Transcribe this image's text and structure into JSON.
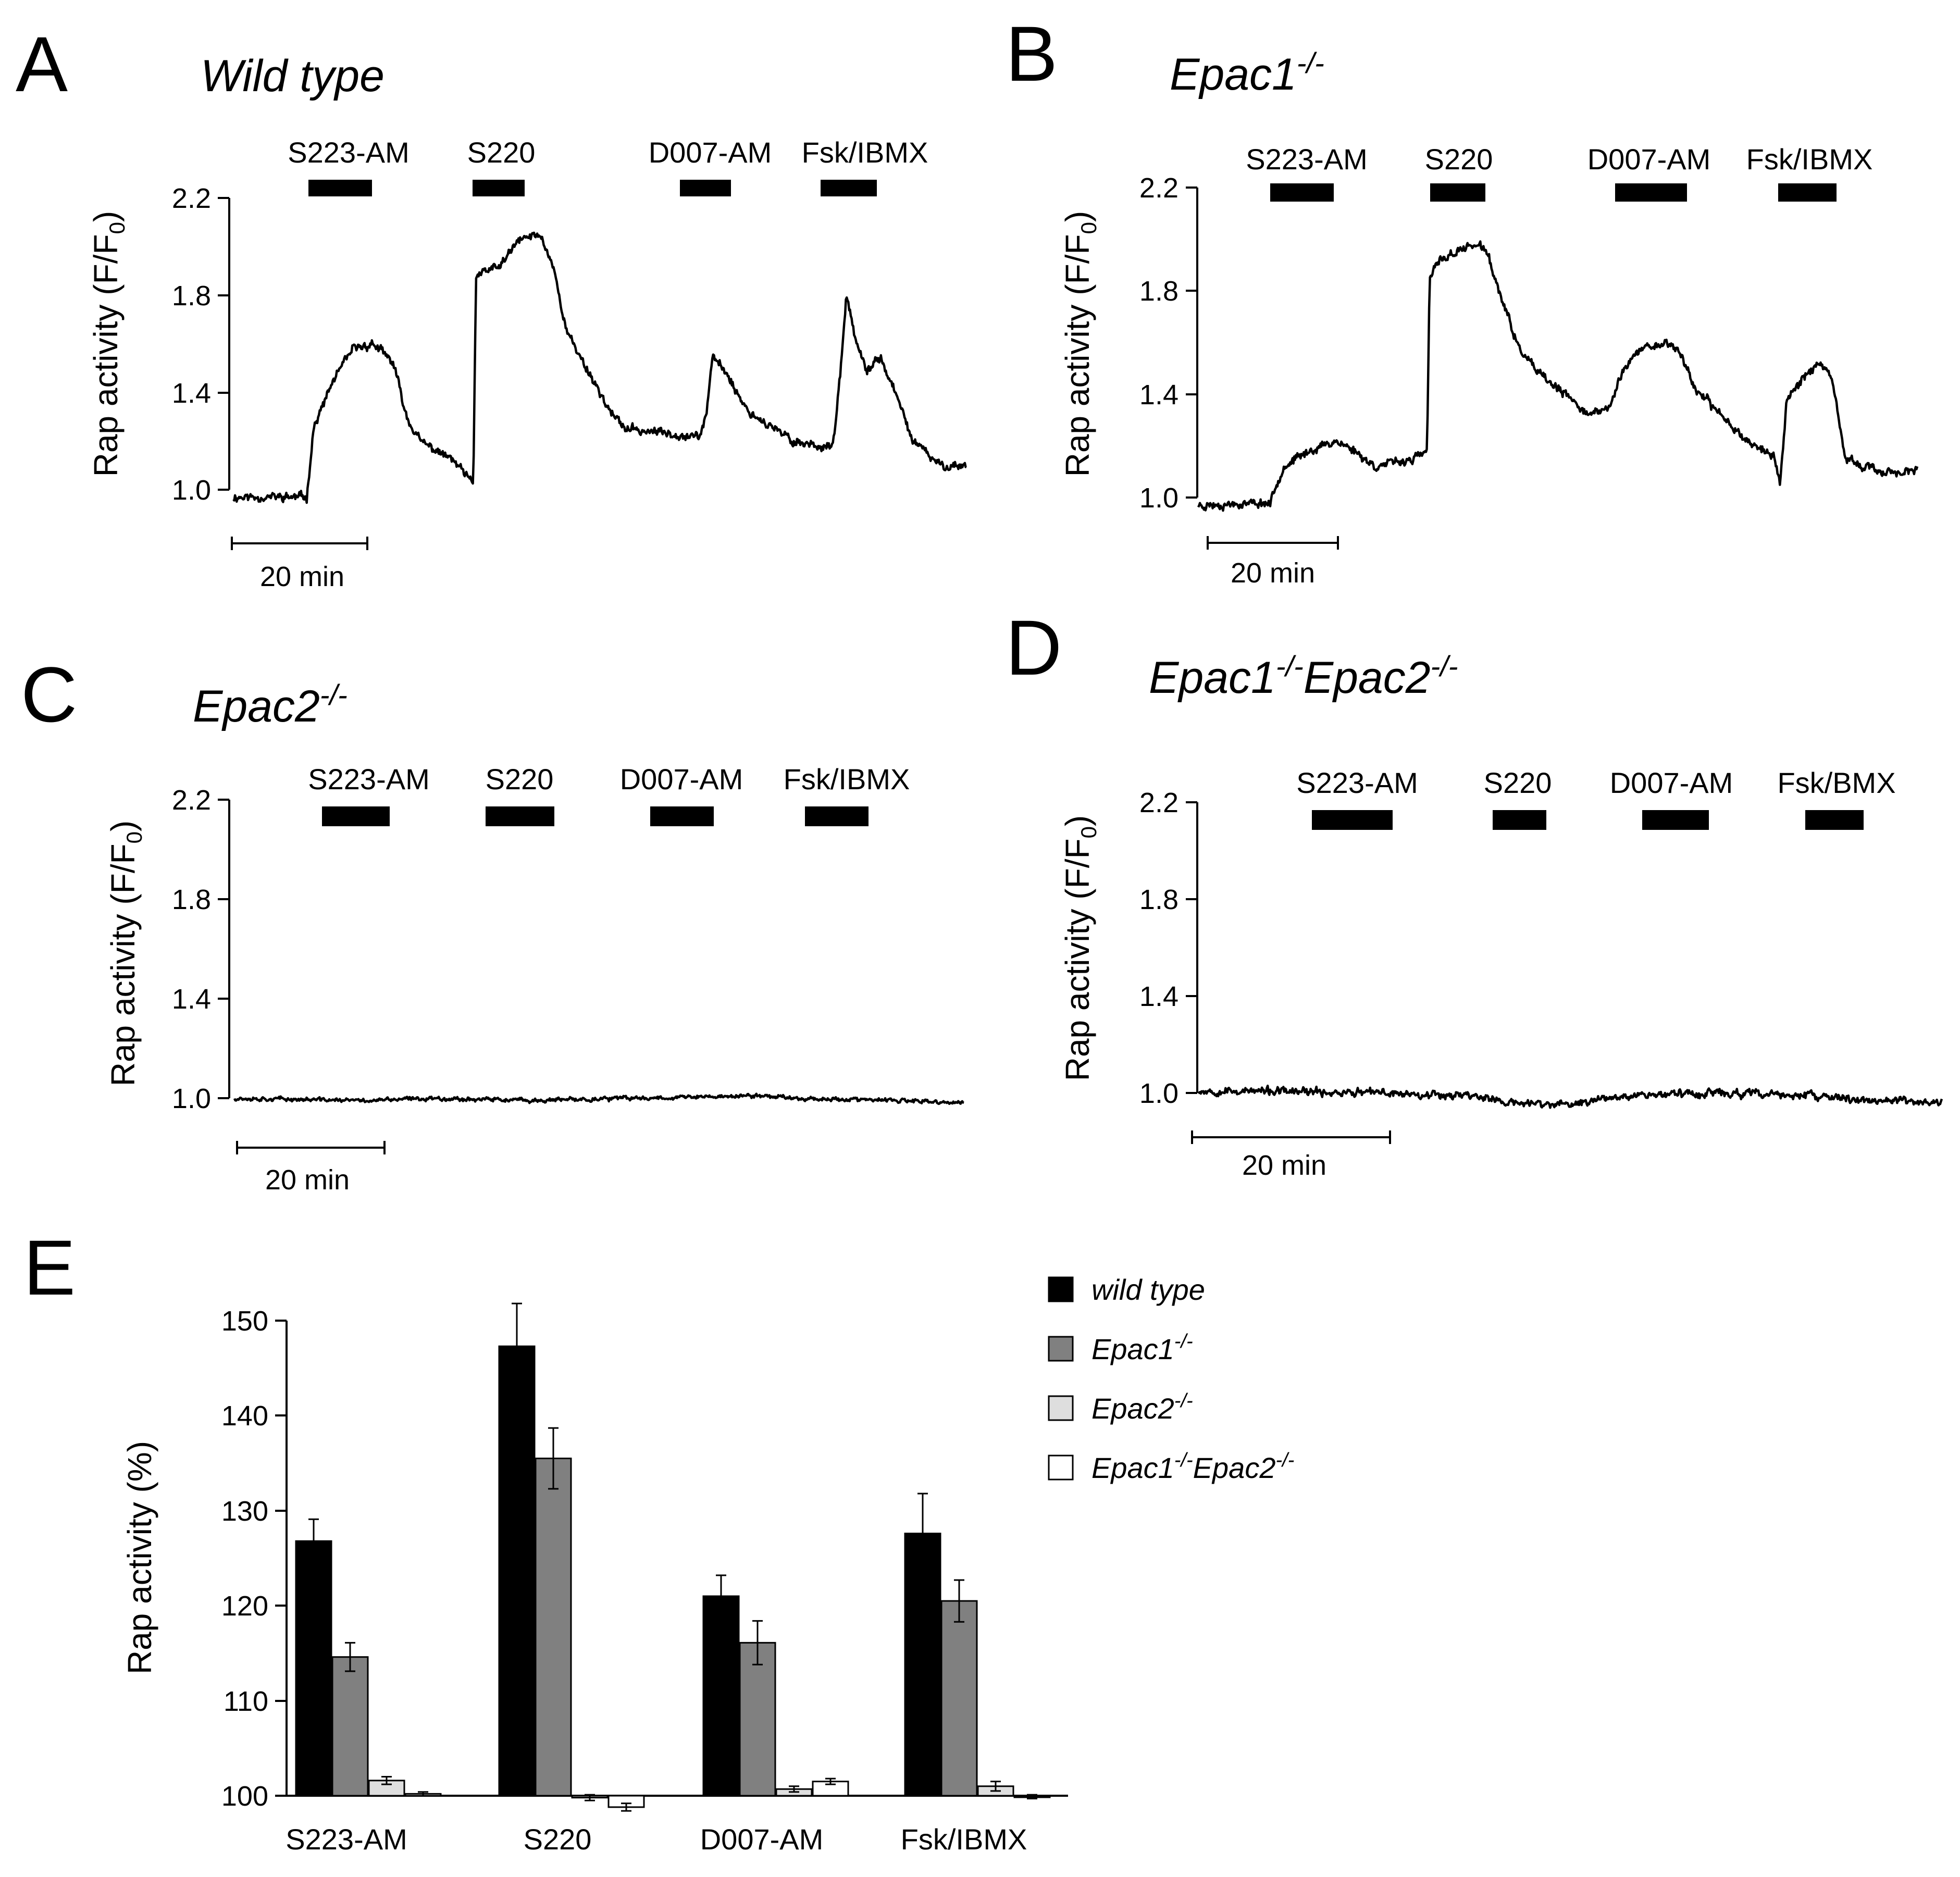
{
  "figure": {
    "trace_panels": [
      {
        "id": "A",
        "title": "Wild type",
        "title_sup": "",
        "ylabel": "Rap activity (F/F",
        "ylabel_sub": "0",
        "ylabel_close": ")",
        "yticks": [
          "2.2",
          "1.8",
          "1.4",
          "1.0"
        ],
        "scale_bar": "20 min",
        "treatments": [
          "S223-AM",
          "S220",
          "D007-AM",
          "Fsk/IBMX"
        ]
      },
      {
        "id": "B",
        "title": "Epac1",
        "title_sup": "-/-",
        "ylabel": "Rap activity (F/F",
        "ylabel_sub": "0",
        "ylabel_close": ")",
        "yticks": [
          "2.2",
          "1.8",
          "1.4",
          "1.0"
        ],
        "scale_bar": "20 min",
        "treatments": [
          "S223-AM",
          "S220",
          "D007-AM",
          "Fsk/IBMX"
        ]
      },
      {
        "id": "C",
        "title": "Epac2",
        "title_sup": "-/-",
        "ylabel": "Rap activity (F/F",
        "ylabel_sub": "0",
        "ylabel_close": ")",
        "yticks": [
          "2.2",
          "1.8",
          "1.4",
          "1.0"
        ],
        "scale_bar": "20 min",
        "treatments": [
          "S223-AM",
          "S220",
          "D007-AM",
          "Fsk/IBMX"
        ]
      },
      {
        "id": "D",
        "title": "Epac1",
        "title_sup": "-/-",
        "title2": "Epac2",
        "title2_sup": "-/-",
        "ylabel": "Rap activity (F/F",
        "ylabel_sub": "0",
        "ylabel_close": ")",
        "yticks": [
          "2.2",
          "1.8",
          "1.4",
          "1.0"
        ],
        "scale_bar": "20 min",
        "treatments": [
          "S223-AM",
          "S220",
          "D007-AM",
          "Fsk/BMX"
        ]
      }
    ],
    "bar_panel": {
      "id": "E",
      "ylabel": "Rap activity (%)",
      "yticks": [
        "150",
        "140",
        "130",
        "120",
        "110",
        "100"
      ],
      "legend": [
        {
          "label": "wild type",
          "sup": "",
          "label2": "",
          "sup2": ""
        },
        {
          "label": "Epac1",
          "sup": "-/-",
          "label2": "",
          "sup2": ""
        },
        {
          "label": "Epac2",
          "sup": "-/-",
          "label2": "",
          "sup2": ""
        },
        {
          "label": "Epac1",
          "sup": "-/-",
          "label2": "Epac2",
          "sup2": "-/-"
        }
      ]
    }
  },
  "chart_data": [
    {
      "type": "line",
      "panel": "A",
      "title": "Wild type",
      "ylabel": "Rap activity (F/F0)",
      "ylim": [
        1.0,
        2.2
      ],
      "time_unit": "min",
      "time_range": [
        0,
        110
      ],
      "treatment_windows": [
        {
          "label": "S223-AM",
          "start": 11,
          "end": 21
        },
        {
          "label": "S220",
          "start": 37,
          "end": 45
        },
        {
          "label": "D007-AM",
          "start": 70,
          "end": 78
        },
        {
          "label": "Fsk/IBMX",
          "start": 91,
          "end": 100
        }
      ],
      "series": [
        {
          "name": "Wild type",
          "baseline": 0.97,
          "noise": 0.022,
          "keypoints": [
            [
              0,
              0.97
            ],
            [
              11,
              0.97
            ],
            [
              12,
              1.25
            ],
            [
              15,
              1.45
            ],
            [
              18,
              1.58
            ],
            [
              21,
              1.6
            ],
            [
              24,
              1.52
            ],
            [
              26,
              1.3
            ],
            [
              28,
              1.2
            ],
            [
              33,
              1.12
            ],
            [
              36,
              1.02
            ],
            [
              36.4,
              1.88
            ],
            [
              40,
              1.92
            ],
            [
              43,
              2.03
            ],
            [
              46,
              2.05
            ],
            [
              48,
              1.92
            ],
            [
              50,
              1.65
            ],
            [
              54,
              1.45
            ],
            [
              57,
              1.3
            ],
            [
              59,
              1.25
            ],
            [
              70,
              1.22
            ],
            [
              71,
              1.32
            ],
            [
              72,
              1.55
            ],
            [
              74,
              1.48
            ],
            [
              77,
              1.33
            ],
            [
              80,
              1.27
            ],
            [
              84,
              1.2
            ],
            [
              88,
              1.18
            ],
            [
              90,
              1.18
            ],
            [
              91,
              1.45
            ],
            [
              92,
              1.8
            ],
            [
              93.5,
              1.6
            ],
            [
              95,
              1.48
            ],
            [
              97,
              1.55
            ],
            [
              99,
              1.42
            ],
            [
              102,
              1.2
            ],
            [
              106,
              1.1
            ],
            [
              110,
              1.1
            ]
          ]
        }
      ]
    },
    {
      "type": "line",
      "panel": "B",
      "title": "Epac1-/-",
      "ylabel": "Rap activity (F/F0)",
      "ylim": [
        1.0,
        2.2
      ],
      "time_unit": "min",
      "time_range": [
        0,
        110
      ],
      "treatment_windows": [
        {
          "label": "S223-AM",
          "start": 11,
          "end": 21
        },
        {
          "label": "S220",
          "start": 36,
          "end": 44
        },
        {
          "label": "D007-AM",
          "start": 63,
          "end": 74
        },
        {
          "label": "Fsk/IBMX",
          "start": 89,
          "end": 98
        }
      ],
      "series": [
        {
          "name": "Epac1-/-",
          "baseline": 0.97,
          "noise": 0.02,
          "keypoints": [
            [
              0,
              0.97
            ],
            [
              11,
              0.98
            ],
            [
              13,
              1.12
            ],
            [
              17,
              1.18
            ],
            [
              21,
              1.22
            ],
            [
              24,
              1.18
            ],
            [
              27,
              1.12
            ],
            [
              33,
              1.15
            ],
            [
              35,
              1.18
            ],
            [
              35.4,
              1.85
            ],
            [
              37,
              1.92
            ],
            [
              42,
              1.98
            ],
            [
              44,
              1.96
            ],
            [
              46,
              1.8
            ],
            [
              49,
              1.58
            ],
            [
              52,
              1.48
            ],
            [
              56,
              1.4
            ],
            [
              60,
              1.32
            ],
            [
              63,
              1.35
            ],
            [
              65,
              1.5
            ],
            [
              68,
              1.58
            ],
            [
              72,
              1.6
            ],
            [
              74,
              1.55
            ],
            [
              76,
              1.42
            ],
            [
              80,
              1.32
            ],
            [
              84,
              1.22
            ],
            [
              88,
              1.16
            ],
            [
              89,
              1.05
            ],
            [
              90,
              1.38
            ],
            [
              93,
              1.48
            ],
            [
              95,
              1.52
            ],
            [
              97,
              1.45
            ],
            [
              99,
              1.15
            ],
            [
              104,
              1.1
            ],
            [
              110,
              1.1
            ]
          ]
        }
      ]
    },
    {
      "type": "line",
      "panel": "C",
      "title": "Epac2-/-",
      "ylabel": "Rap activity (F/F0)",
      "ylim": [
        1.0,
        2.2
      ],
      "time_unit": "min",
      "time_range": [
        0,
        110
      ],
      "treatment_windows": [
        {
          "label": "S223-AM",
          "start": 13,
          "end": 23
        },
        {
          "label": "S220",
          "start": 37,
          "end": 47
        },
        {
          "label": "D007-AM",
          "start": 61,
          "end": 70
        },
        {
          "label": "Fsk/IBMX",
          "start": 83,
          "end": 92
        }
      ],
      "series": [
        {
          "name": "Epac2-/-",
          "baseline": 0.99,
          "noise": 0.01,
          "keypoints": [
            [
              0,
              1.0
            ],
            [
              20,
              0.99
            ],
            [
              30,
              1.0
            ],
            [
              45,
              0.99
            ],
            [
              60,
              1.0
            ],
            [
              80,
              1.01
            ],
            [
              85,
              1.0
            ],
            [
              100,
              0.99
            ],
            [
              110,
              0.98
            ]
          ]
        }
      ]
    },
    {
      "type": "line",
      "panel": "D",
      "title": "Epac1-/-Epac2-/-",
      "ylabel": "Rap activity (F/F0)",
      "ylim": [
        1.0,
        2.2
      ],
      "time_unit": "min",
      "time_range": [
        0,
        80
      ],
      "treatment_windows": [
        {
          "label": "S223-AM",
          "start": 12,
          "end": 20
        },
        {
          "label": "S220",
          "start": 31,
          "end": 36
        },
        {
          "label": "D007-AM",
          "start": 45,
          "end": 52
        },
        {
          "label": "Fsk/BMX",
          "start": 62,
          "end": 68
        }
      ],
      "series": [
        {
          "name": "Epac1-/-Epac2-/-",
          "baseline": 1.0,
          "noise": 0.02,
          "keypoints": [
            [
              0,
              1.01
            ],
            [
              20,
              1.0
            ],
            [
              30,
              0.99
            ],
            [
              33,
              0.96
            ],
            [
              40,
              0.95
            ],
            [
              45,
              0.99
            ],
            [
              55,
              1.0
            ],
            [
              65,
              0.99
            ],
            [
              72,
              0.97
            ],
            [
              80,
              0.96
            ]
          ]
        }
      ]
    },
    {
      "type": "bar",
      "panel": "E",
      "ylabel": "Rap activity (%)",
      "ylim": [
        100,
        150
      ],
      "categories": [
        "S223-AM",
        "S220",
        "D007-AM",
        "Fsk/IBMX"
      ],
      "series": [
        {
          "name": "wild type",
          "color": "#000000",
          "values": [
            126.8,
            147.3,
            121.0,
            127.6
          ],
          "errors": [
            2.3,
            4.5,
            2.2,
            4.2
          ]
        },
        {
          "name": "Epac1-/-",
          "color": "#808080",
          "values": [
            114.6,
            135.5,
            116.1,
            120.5
          ],
          "errors": [
            1.5,
            3.2,
            2.3,
            2.2
          ]
        },
        {
          "name": "Epac2-/-",
          "color": "#dedede",
          "values": [
            101.6,
            99.8,
            100.7,
            101.0
          ],
          "errors": [
            0.4,
            0.3,
            0.3,
            0.5
          ]
        },
        {
          "name": "Epac1-/-Epac2-/-",
          "color": "#ffffff",
          "values": [
            100.2,
            98.8,
            101.5,
            99.9
          ],
          "errors": [
            0.2,
            0.4,
            0.3,
            0.2
          ]
        }
      ]
    }
  ]
}
